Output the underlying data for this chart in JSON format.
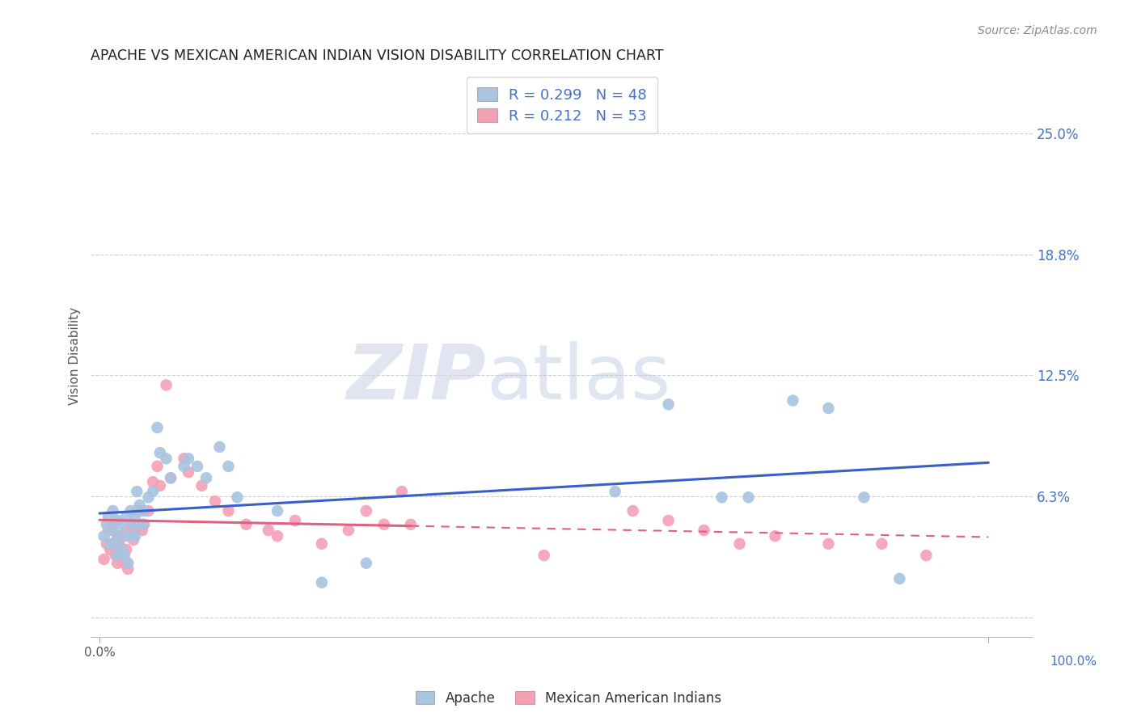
{
  "title": "APACHE VS MEXICAN AMERICAN INDIAN VISION DISABILITY CORRELATION CHART",
  "source": "Source: ZipAtlas.com",
  "ylabel": "Vision Disability",
  "R_apache": 0.299,
  "N_apache": 48,
  "R_mexican": 0.212,
  "N_mexican": 53,
  "apache_color": "#a8c4e0",
  "mexican_color": "#f4a0b5",
  "apache_line_color": "#3a5fcd",
  "mexican_line_color": "#e06080",
  "legend_label_apache": "Apache",
  "legend_label_mexican": "Mexican American Indians",
  "watermark_zip": "ZIP",
  "watermark_atlas": "atlas",
  "apache_x": [
    0.005,
    0.008,
    0.01,
    0.012,
    0.015,
    0.015,
    0.018,
    0.02,
    0.02,
    0.022,
    0.025,
    0.025,
    0.028,
    0.03,
    0.03,
    0.032,
    0.035,
    0.038,
    0.04,
    0.04,
    0.042,
    0.045,
    0.048,
    0.05,
    0.055,
    0.06,
    0.065,
    0.068,
    0.075,
    0.08,
    0.095,
    0.1,
    0.11,
    0.12,
    0.135,
    0.145,
    0.155,
    0.2,
    0.25,
    0.3,
    0.58,
    0.64,
    0.7,
    0.73,
    0.78,
    0.82,
    0.86,
    0.9
  ],
  "apache_y": [
    0.042,
    0.048,
    0.052,
    0.038,
    0.055,
    0.045,
    0.038,
    0.05,
    0.032,
    0.042,
    0.048,
    0.035,
    0.032,
    0.052,
    0.042,
    0.028,
    0.055,
    0.048,
    0.052,
    0.042,
    0.065,
    0.058,
    0.048,
    0.055,
    0.062,
    0.065,
    0.098,
    0.085,
    0.082,
    0.072,
    0.078,
    0.082,
    0.078,
    0.072,
    0.088,
    0.078,
    0.062,
    0.055,
    0.018,
    0.028,
    0.065,
    0.11,
    0.062,
    0.062,
    0.112,
    0.108,
    0.062,
    0.02
  ],
  "mexican_x": [
    0.005,
    0.008,
    0.01,
    0.012,
    0.015,
    0.015,
    0.018,
    0.02,
    0.02,
    0.022,
    0.025,
    0.025,
    0.028,
    0.03,
    0.03,
    0.032,
    0.035,
    0.038,
    0.04,
    0.042,
    0.045,
    0.048,
    0.05,
    0.055,
    0.06,
    0.065,
    0.068,
    0.075,
    0.08,
    0.095,
    0.1,
    0.115,
    0.13,
    0.145,
    0.165,
    0.19,
    0.2,
    0.22,
    0.25,
    0.28,
    0.3,
    0.32,
    0.34,
    0.35,
    0.5,
    0.6,
    0.64,
    0.68,
    0.72,
    0.76,
    0.82,
    0.88,
    0.93
  ],
  "mexican_y": [
    0.03,
    0.038,
    0.045,
    0.035,
    0.048,
    0.038,
    0.032,
    0.042,
    0.028,
    0.038,
    0.042,
    0.03,
    0.028,
    0.045,
    0.035,
    0.025,
    0.048,
    0.04,
    0.045,
    0.055,
    0.055,
    0.045,
    0.048,
    0.055,
    0.07,
    0.078,
    0.068,
    0.12,
    0.072,
    0.082,
    0.075,
    0.068,
    0.06,
    0.055,
    0.048,
    0.045,
    0.042,
    0.05,
    0.038,
    0.045,
    0.055,
    0.048,
    0.065,
    0.048,
    0.032,
    0.055,
    0.05,
    0.045,
    0.038,
    0.042,
    0.038,
    0.038,
    0.032
  ],
  "ytick_vals": [
    0.0,
    0.0625,
    0.125,
    0.1875,
    0.25
  ],
  "ytick_labels_right": [
    "",
    "6.3%",
    "12.5%",
    "18.8%",
    "25.0%"
  ],
  "xlim": [
    -0.01,
    1.05
  ],
  "ylim": [
    -0.01,
    0.28
  ],
  "xticks": [
    0.0,
    1.0
  ],
  "xtick_labels": [
    "0.0%",
    "100.0%"
  ]
}
